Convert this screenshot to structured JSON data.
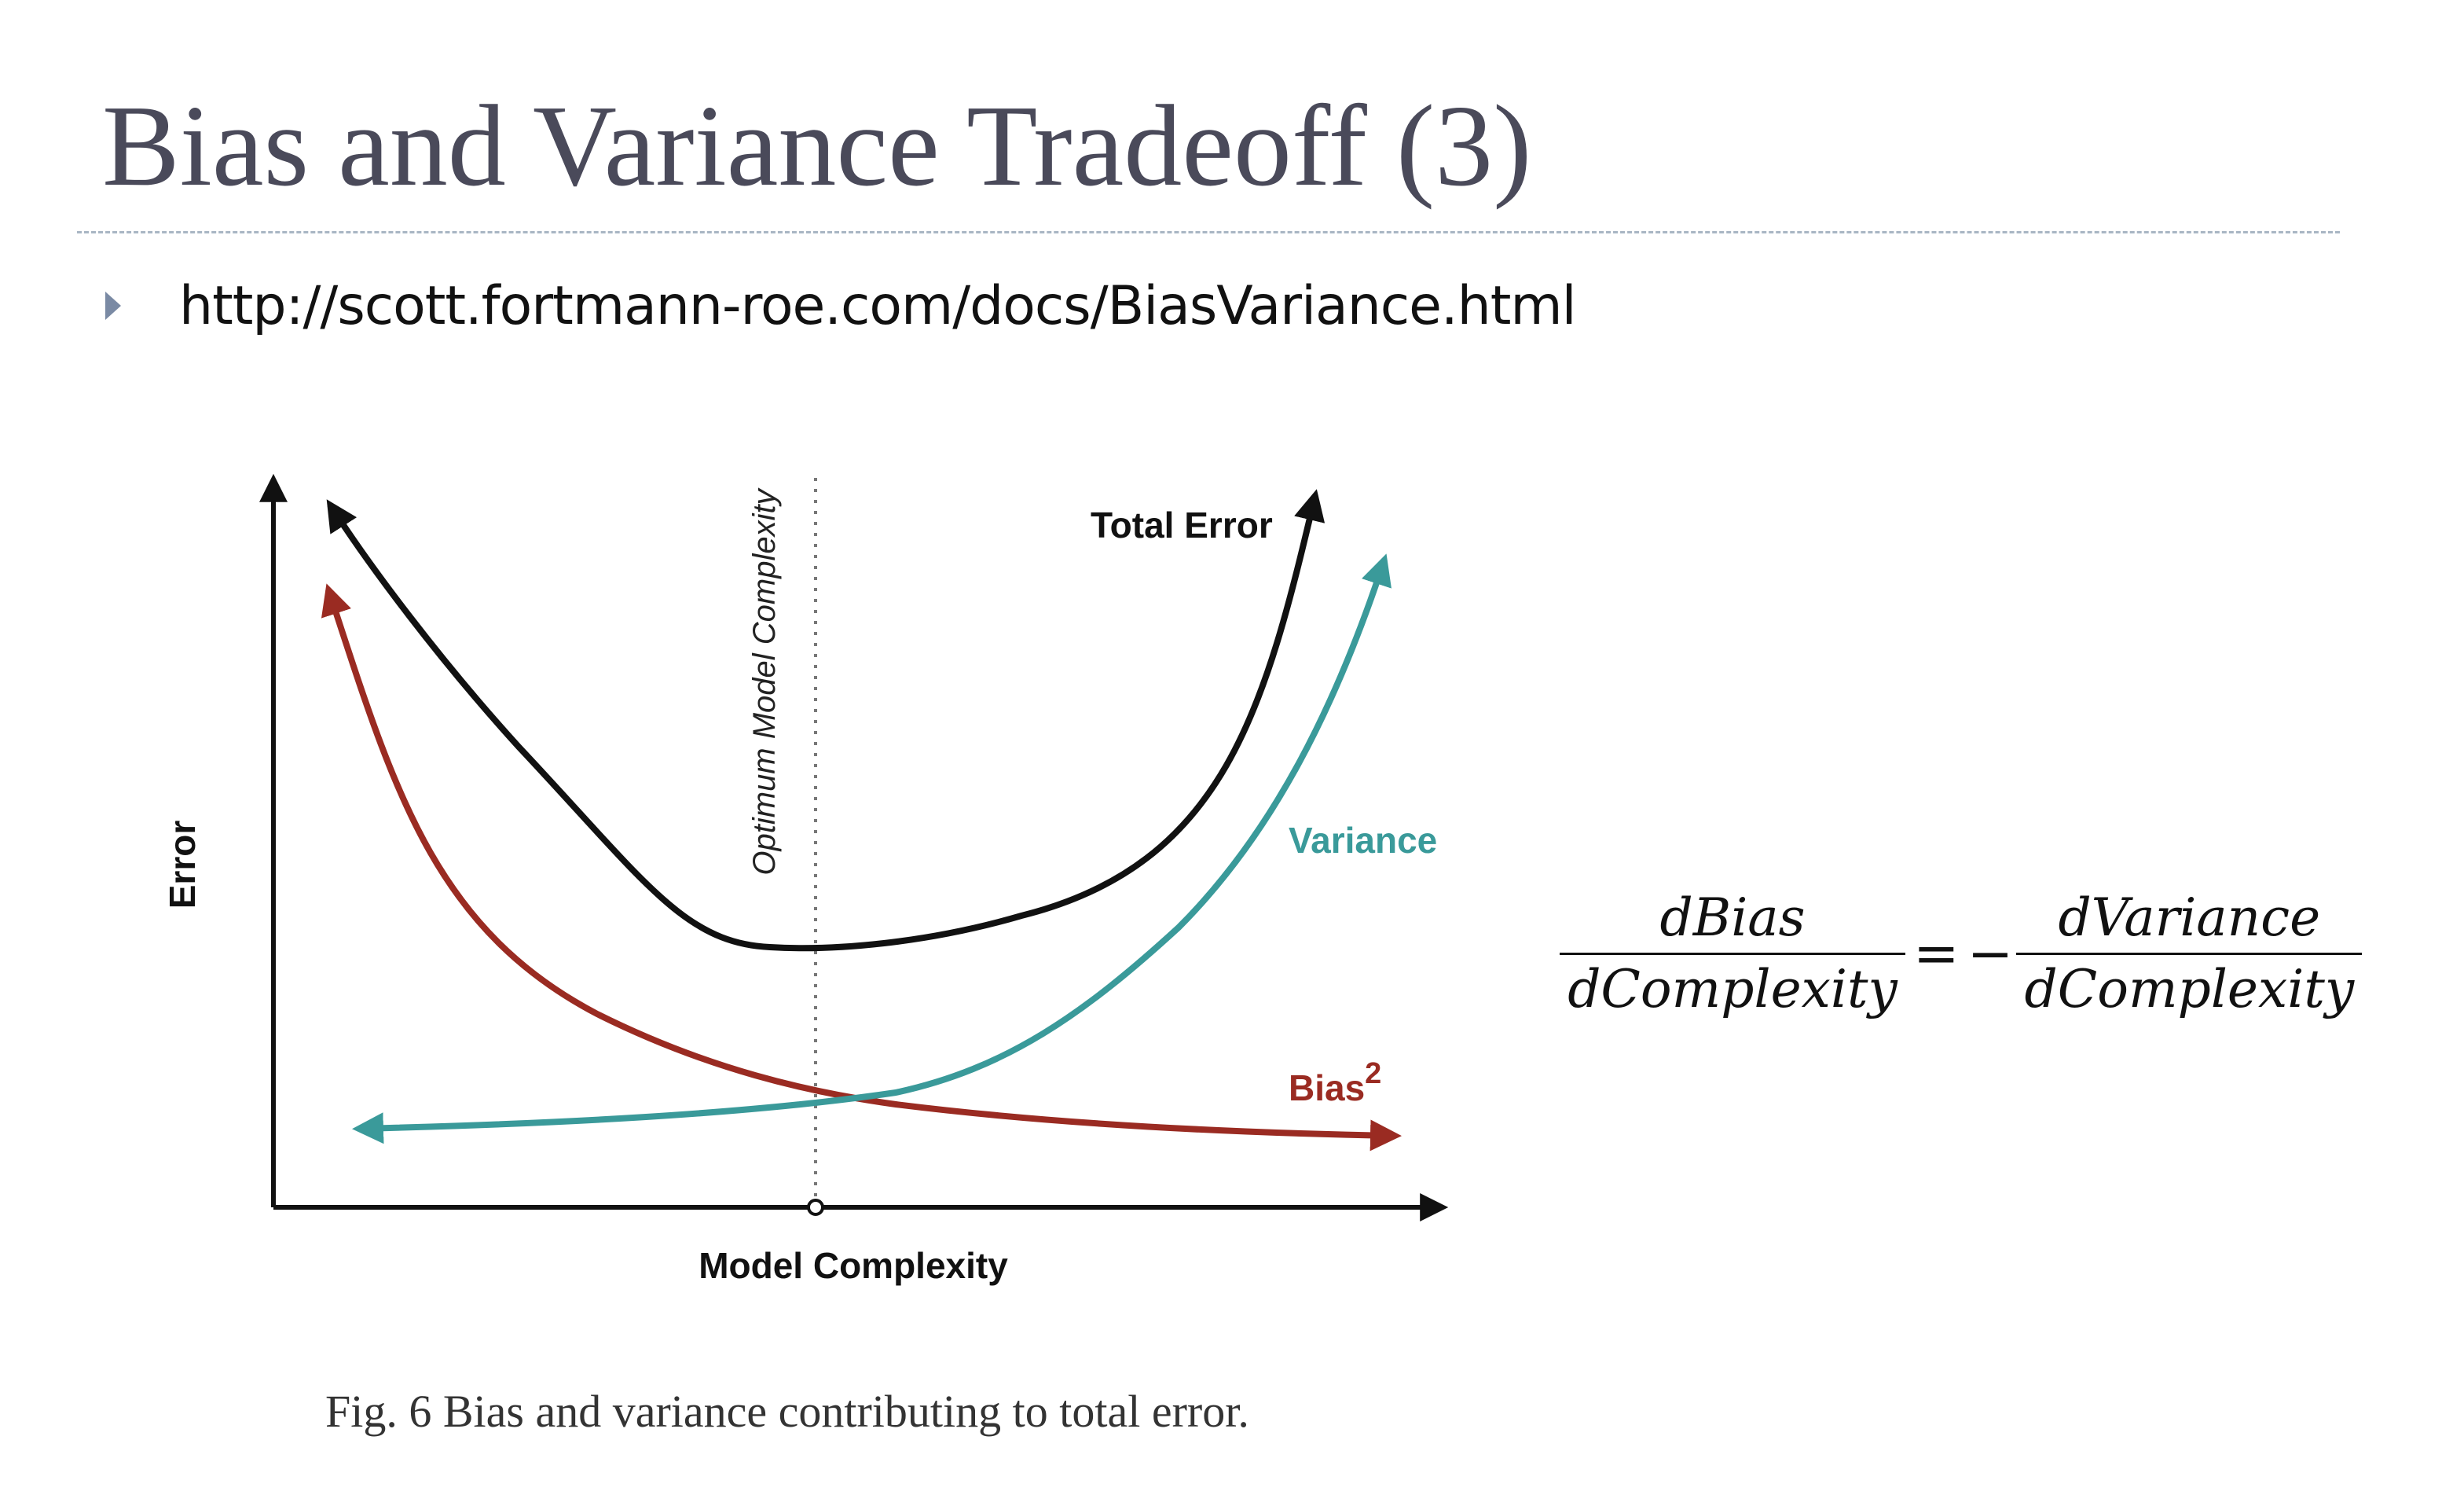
{
  "slide": {
    "title": "Bias and Variance Tradeoff (3)",
    "bullet_url": "http://scott.fortmann-roe.com/docs/BiasVariance.html"
  },
  "diagram": {
    "y_axis_label": "Error",
    "x_axis_label": "Model Complexity",
    "optimum_label": "Optimum Model Complexity",
    "total_error_label": "Total Error",
    "variance_label": "Variance",
    "bias_label": "Bias",
    "bias_superscript": "2",
    "colors": {
      "total_error": "#111111",
      "variance": "#3a9a9a",
      "bias": "#9a2b22",
      "axis": "#111111",
      "optimum_line": "#777777"
    }
  },
  "equation": {
    "left_numerator": "dBias",
    "left_denominator": "dComplexity",
    "equals": "=",
    "minus": "−",
    "right_numerator": "dVariance",
    "right_denominator": "dComplexity"
  },
  "caption": "Fig. 6 Bias and variance contributing to total error."
}
